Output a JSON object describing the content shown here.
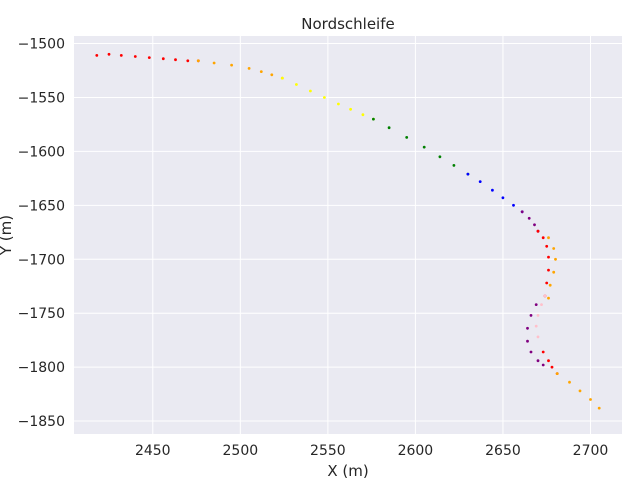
{
  "chart_data": {
    "type": "scatter",
    "title": "Nordschleife",
    "xlabel": "X (m)",
    "ylabel": "Y (m)",
    "xlim": [
      2405,
      2718
    ],
    "ylim": [
      -1862,
      -1493
    ],
    "xticks": [
      2450,
      2500,
      2550,
      2600,
      2650,
      2700
    ],
    "yticks": [
      -1500,
      -1550,
      -1600,
      -1650,
      -1700,
      -1750,
      -1800,
      -1850
    ],
    "xtick_labels": [
      "2450",
      "2500",
      "2550",
      "2600",
      "2650",
      "2700"
    ],
    "ytick_labels": [
      "−1500",
      "−1550",
      "−1600",
      "−1650",
      "−1700",
      "−1750",
      "−1800",
      "−1850"
    ],
    "grid": true,
    "background": "#eaeaf2",
    "series": [
      {
        "color": "#ff0000",
        "x": [
          2418,
          2425,
          2432,
          2440,
          2448,
          2456,
          2463,
          2470,
          2476
        ],
        "y": [
          -1511,
          -1510,
          -1511,
          -1512,
          -1513,
          -1514,
          -1515,
          -1516,
          -1516
        ]
      },
      {
        "color": "#ffa500",
        "x": [
          2476,
          2485,
          2495,
          2505,
          2512,
          2518,
          2524
        ],
        "y": [
          -1516,
          -1518,
          -1520,
          -1523,
          -1526,
          -1529,
          -1532
        ]
      },
      {
        "color": "#ffff00",
        "x": [
          2524,
          2532,
          2540,
          2548,
          2556,
          2563,
          2570,
          2576
        ],
        "y": [
          -1532,
          -1538,
          -1544,
          -1550,
          -1556,
          -1561,
          -1566,
          -1570
        ]
      },
      {
        "color": "#008000",
        "x": [
          2576,
          2585,
          2595,
          2605,
          2614,
          2622,
          2630
        ],
        "y": [
          -1570,
          -1578,
          -1587,
          -1596,
          -1605,
          -1613,
          -1621
        ]
      },
      {
        "color": "#0000ff",
        "x": [
          2630,
          2637,
          2644,
          2650,
          2656,
          2661
        ],
        "y": [
          -1621,
          -1628,
          -1636,
          -1643,
          -1650,
          -1656
        ]
      },
      {
        "color": "#800080",
        "x": [
          2661,
          2665,
          2668,
          2670
        ],
        "y": [
          -1656,
          -1662,
          -1668,
          -1674
        ]
      },
      {
        "color": "#ff0000",
        "x": [
          2670,
          2673,
          2675,
          2676,
          2676,
          2675,
          2674
        ],
        "y": [
          -1674,
          -1680,
          -1688,
          -1698,
          -1710,
          -1722,
          -1734
        ]
      },
      {
        "color": "#ffa500",
        "x": [
          2676,
          2679,
          2680,
          2679,
          2677,
          2676
        ],
        "y": [
          -1680,
          -1690,
          -1700,
          -1712,
          -1724,
          -1736
        ]
      },
      {
        "color": "#ffc0cb",
        "x": [
          2674,
          2672,
          2670,
          2669,
          2670
        ],
        "y": [
          -1734,
          -1742,
          -1752,
          -1762,
          -1772
        ]
      },
      {
        "color": "#800080",
        "x": [
          2669,
          2666,
          2664,
          2664,
          2666,
          2670,
          2673
        ],
        "y": [
          -1742,
          -1752,
          -1764,
          -1776,
          -1786,
          -1794,
          -1798
        ]
      },
      {
        "color": "#ff0000",
        "x": [
          2673,
          2676,
          2678,
          2681
        ],
        "y": [
          -1786,
          -1794,
          -1800,
          -1806
        ]
      },
      {
        "color": "#ffa500",
        "x": [
          2681,
          2688,
          2694,
          2700,
          2705
        ],
        "y": [
          -1806,
          -1814,
          -1822,
          -1830,
          -1838
        ]
      }
    ]
  }
}
